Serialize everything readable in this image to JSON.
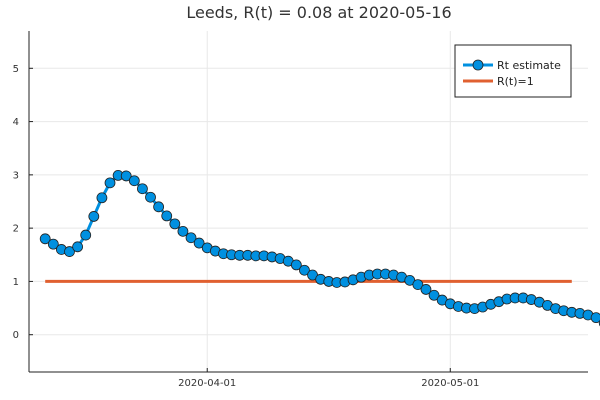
{
  "chart_data": {
    "type": "line",
    "title": "Leeds, R(t) = 0.08 at 2020-05-16",
    "xlabel": "",
    "ylabel": "",
    "x_start": "2020-03-12",
    "x_end": "2020-05-16",
    "xlim": [
      "2020-03-10",
      "2020-05-18"
    ],
    "ylim": [
      -0.7,
      5.7
    ],
    "x_ticks": [
      {
        "date": "2020-04-01",
        "label": "2020-04-01"
      },
      {
        "date": "2020-05-01",
        "label": "2020-05-01"
      }
    ],
    "y_ticks": [
      0,
      1,
      2,
      3,
      4,
      5
    ],
    "grid": true,
    "legend_position": "top-right",
    "series": [
      {
        "name": "Rt estimate",
        "color": "#0090e0",
        "marker": "circle",
        "values": [
          1.8,
          1.7,
          1.6,
          1.56,
          1.65,
          1.87,
          2.22,
          2.57,
          2.85,
          2.99,
          2.98,
          2.89,
          2.74,
          2.58,
          2.4,
          2.23,
          2.08,
          1.94,
          1.82,
          1.72,
          1.63,
          1.57,
          1.52,
          1.5,
          1.49,
          1.49,
          1.48,
          1.48,
          1.46,
          1.43,
          1.38,
          1.31,
          1.21,
          1.12,
          1.04,
          1.0,
          0.98,
          0.99,
          1.03,
          1.08,
          1.12,
          1.14,
          1.14,
          1.12,
          1.08,
          1.02,
          0.94,
          0.85,
          0.74,
          0.65,
          0.58,
          0.53,
          0.5,
          0.49,
          0.52,
          0.57,
          0.62,
          0.67,
          0.69,
          0.69,
          0.66,
          0.61,
          0.55,
          0.49,
          0.45,
          0.42,
          0.4,
          0.37,
          0.32,
          0.22,
          0.08
        ]
      },
      {
        "name": "R(t)=1",
        "color": "#e06030",
        "values": [
          1,
          1
        ]
      }
    ]
  }
}
